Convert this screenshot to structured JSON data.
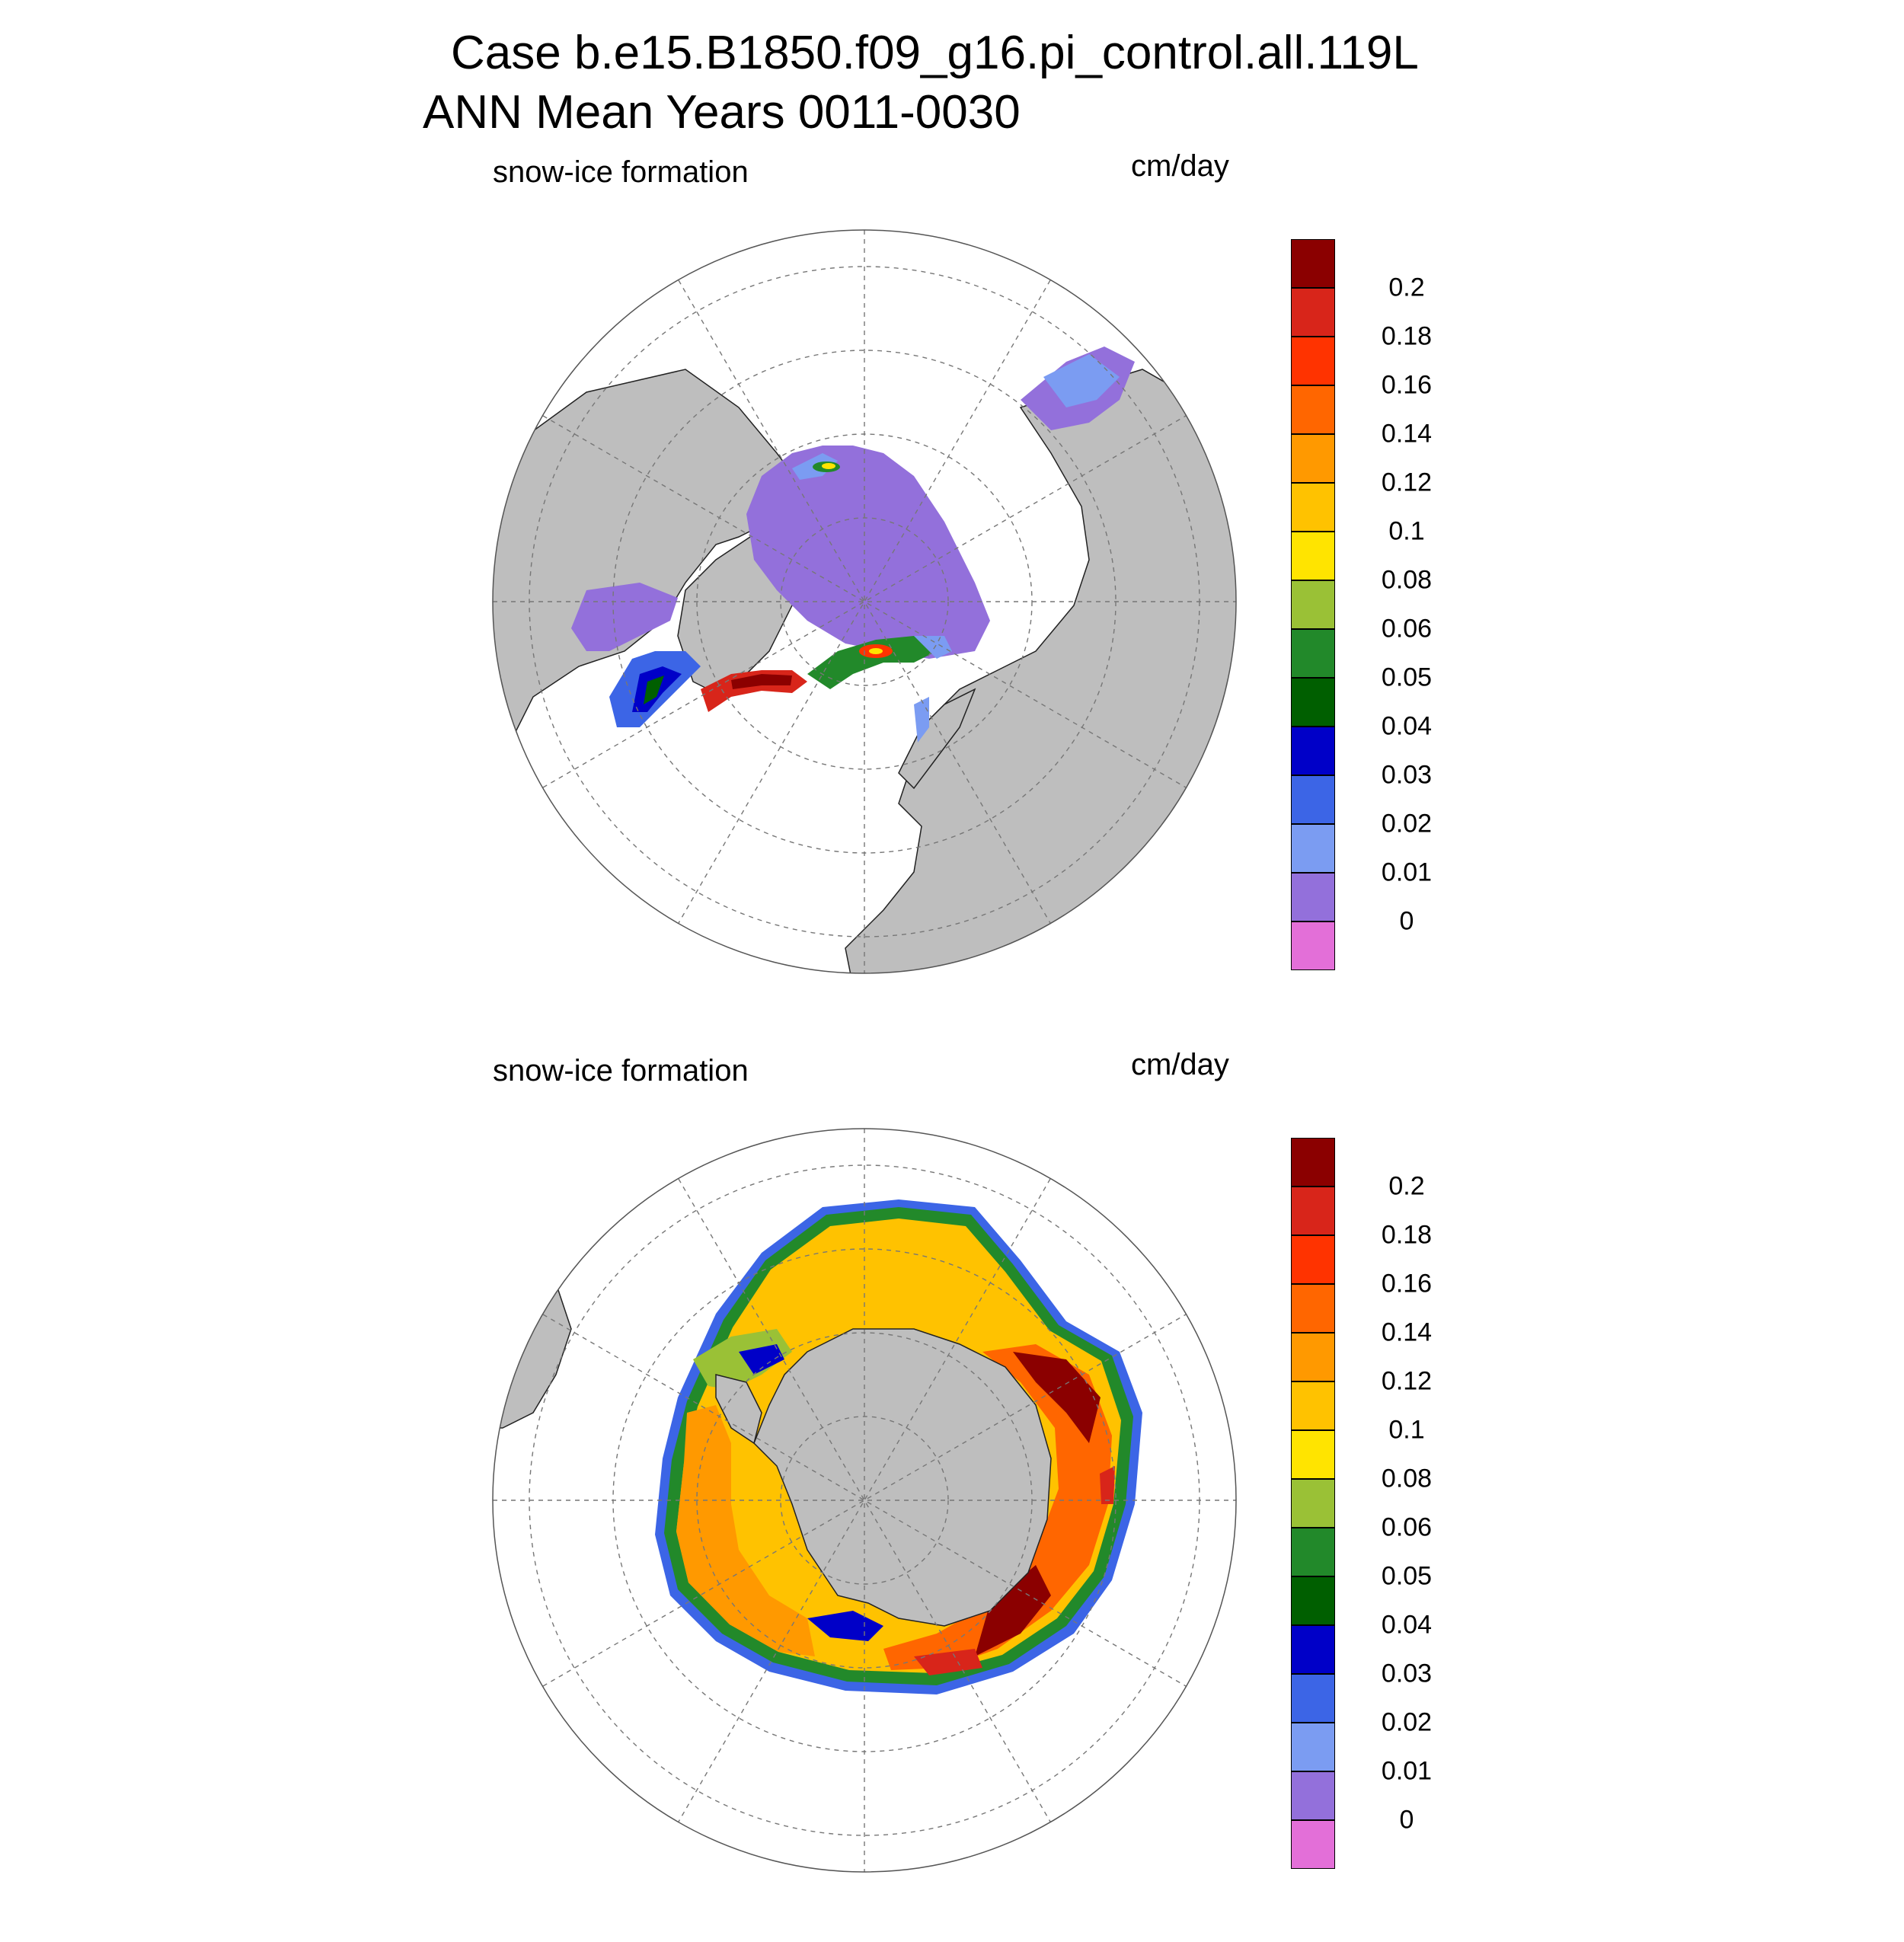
{
  "title_line1": "Case b.e15.B1850.f09_g16.pi_control.all.119L",
  "title_line2": "ANN Mean     Years 0011-0030",
  "panels": [
    {
      "id": "nh",
      "variable": "snow-ice formation",
      "units": "cm/day",
      "hemisphere": "Northern",
      "projection": "polar stereographic"
    },
    {
      "id": "sh",
      "variable": "snow-ice formation",
      "units": "cm/day",
      "hemisphere": "Southern",
      "projection": "polar stereographic"
    }
  ],
  "colors": {
    "land": "#bebebe",
    "background": "#ffffff",
    "grid": "#777777"
  },
  "colorbar": {
    "levels": [
      "0.2",
      "0.18",
      "0.16",
      "0.14",
      "0.12",
      "0.1",
      "0.08",
      "0.06",
      "0.05",
      "0.04",
      "0.03",
      "0.02",
      "0.01",
      "0"
    ],
    "colors": [
      "#8b0000",
      "#d8251a",
      "#ff3300",
      "#ff6600",
      "#ff9900",
      "#ffc200",
      "#ffe400",
      "#9ac136",
      "#22892a",
      "#005f00",
      "#0000c8",
      "#3c65e6",
      "#7b9cf2",
      "#9370db",
      "#e36fd8"
    ]
  }
}
